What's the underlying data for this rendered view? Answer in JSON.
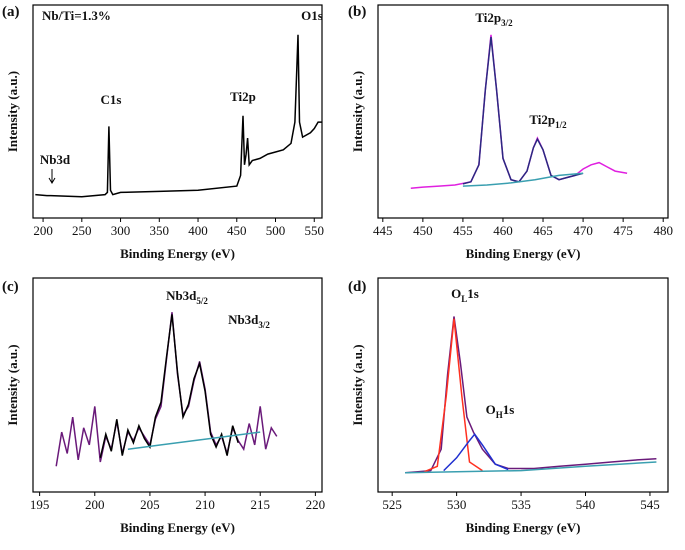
{
  "chart_data": [
    {
      "type": "line",
      "label": "(a)",
      "xlabel": "Binding Energy (eV)",
      "ylabel": "Intensity (a.u.)",
      "xlim": [
        187,
        560
      ],
      "xticks": [
        200,
        250,
        300,
        350,
        400,
        450,
        500,
        550
      ],
      "ylim": [
        0,
        100
      ],
      "series": [
        {
          "color": "#000000",
          "x": [
            190,
            205,
            210,
            250,
            280,
            283,
            285,
            287,
            290,
            300,
            350,
            400,
            450,
            455,
            458,
            460,
            462,
            464,
            466,
            470,
            480,
            490,
            500,
            510,
            520,
            525,
            529,
            531,
            535,
            545,
            550,
            555,
            560
          ],
          "values": [
            11,
            10.5,
            10.5,
            10,
            11,
            12,
            43,
            13,
            11,
            12,
            12.5,
            13,
            15,
            20,
            48,
            25,
            30,
            37.5,
            25,
            27,
            28,
            30,
            31,
            32,
            35,
            45,
            86,
            45,
            38,
            40,
            42,
            45,
            45
          ]
        }
      ],
      "annotations": [
        {
          "text": "Nb/Ti=1.3%"
        },
        {
          "text": "O1s"
        },
        {
          "text": "C1s"
        },
        {
          "text": "Ti2p"
        },
        {
          "text": "Nb3d"
        }
      ]
    },
    {
      "type": "line",
      "label": "(b)",
      "xlabel": "Binding Energy (eV)",
      "ylabel": "Intensity (a.u.)",
      "xlim": [
        444.4,
        480.6
      ],
      "xticks": [
        445,
        450,
        455,
        460,
        465,
        470,
        475,
        480
      ],
      "ylim": [
        0,
        100
      ],
      "series": [
        {
          "color": "#e020e0",
          "x": [
            448.5,
            450,
            452,
            454,
            456,
            457,
            457.8,
            458.5,
            459.2,
            460,
            461,
            462,
            463,
            463.8,
            464.3,
            465,
            466,
            467,
            468,
            469,
            470,
            471,
            472,
            473,
            474,
            475.5
          ],
          "values": [
            14,
            14.5,
            15,
            15.5,
            17,
            25,
            60,
            86,
            60,
            28,
            18,
            17,
            22,
            33,
            37.5,
            32,
            20,
            18,
            19,
            20,
            23,
            25,
            26,
            24,
            22,
            21
          ]
        },
        {
          "color": "#2a2a80",
          "x": [
            455,
            456,
            457,
            457.8,
            458.5,
            459.2,
            460,
            461,
            462,
            463,
            463.8,
            464.3,
            465,
            466,
            467,
            468,
            469,
            470
          ],
          "values": [
            16,
            17,
            25,
            60,
            85,
            60,
            28,
            18,
            17,
            22,
            33,
            37,
            32,
            20,
            18,
            19,
            20,
            21
          ]
        },
        {
          "color": "#3a9fb0",
          "x": [
            455,
            458,
            461,
            464,
            467,
            470
          ],
          "values": [
            15,
            15.5,
            16.5,
            18,
            20,
            21
          ]
        }
      ],
      "annotations": [
        {
          "text": "Ti2p",
          "sub": "3/2"
        },
        {
          "text": "Ti2p",
          "sub": "1/2"
        }
      ]
    },
    {
      "type": "line",
      "label": "(c)",
      "xlabel": "Binding Energy (eV)",
      "ylabel": "Intensity (a.u.)",
      "xlim": [
        194.4,
        220.6
      ],
      "xticks": [
        195,
        200,
        205,
        210,
        215,
        220
      ],
      "ylim": [
        0,
        100
      ],
      "series": [
        {
          "color": "#6a1a7a",
          "x": [
            196.5,
            197,
            197.5,
            198,
            198.5,
            199,
            199.5,
            200,
            200.5,
            201,
            201.5,
            202,
            202.5,
            203,
            203.5,
            204,
            204.5,
            205,
            205.5,
            206,
            206.5,
            207,
            207.5,
            208,
            208.5,
            209,
            209.5,
            210,
            210.5,
            211,
            211.5,
            212,
            212.5,
            213,
            213.5,
            214,
            214.5,
            215,
            215.5,
            216,
            216.5
          ],
          "values": [
            12,
            28,
            18,
            35,
            15,
            30,
            22,
            40,
            14,
            26,
            20,
            33,
            18,
            28,
            24,
            30,
            26,
            22,
            34,
            40,
            62,
            84,
            55,
            36,
            40,
            52,
            61,
            48,
            28,
            22,
            26,
            18,
            30,
            24,
            20,
            32,
            22,
            40,
            20,
            30,
            26
          ]
        },
        {
          "color": "#000000",
          "x": [
            200.5,
            201,
            201.5,
            202,
            202.5,
            203,
            203.5,
            204,
            204.5,
            205,
            205.5,
            206,
            206.5,
            207,
            207.5,
            208,
            208.5,
            209,
            209.5,
            210,
            210.5,
            211,
            211.5,
            212,
            212.5,
            213
          ],
          "values": [
            16,
            27,
            19,
            34,
            17,
            29,
            23,
            31,
            25,
            21,
            35,
            42,
            63,
            83,
            56,
            35,
            41,
            53,
            60,
            47,
            27,
            21,
            27,
            17,
            31,
            23
          ]
        },
        {
          "color": "#3a9fb0",
          "x": [
            203,
            206,
            209,
            212,
            215
          ],
          "values": [
            20,
            22,
            24,
            26,
            28
          ]
        }
      ],
      "annotations": [
        {
          "text": "Nb3d",
          "sub": "5/2"
        },
        {
          "text": "Nb3d",
          "sub": "3/2"
        }
      ]
    },
    {
      "type": "line",
      "label": "(d)",
      "xlabel": "Binding Energy (eV)",
      "ylabel": "Intensity (a.u.)",
      "xlim": [
        523.9,
        546.4
      ],
      "xticks": [
        525,
        530,
        535,
        540,
        545
      ],
      "ylim": [
        0,
        100
      ],
      "series": [
        {
          "color": "#6a1a7a",
          "x": [
            526,
            527,
            528,
            528.8,
            529.3,
            529.8,
            530.3,
            530.8,
            531.3,
            532,
            533,
            534,
            536,
            538,
            540,
            542,
            544,
            545.5
          ],
          "values": [
            9,
            9.5,
            10,
            20,
            55,
            82,
            60,
            35,
            28,
            20,
            13,
            11,
            11,
            12,
            13,
            14,
            15,
            15.5
          ]
        },
        {
          "color": "#ff3020",
          "x": [
            527.5,
            528.5,
            529.2,
            529.8,
            530.4,
            531,
            532
          ],
          "values": [
            9.5,
            12,
            45,
            81,
            45,
            14,
            10
          ]
        },
        {
          "color": "#2030d0",
          "x": [
            529,
            530,
            531,
            531.4,
            532,
            533,
            534
          ],
          "values": [
            10,
            16,
            24,
            27,
            22,
            13,
            10.5
          ]
        },
        {
          "color": "#3a9fb0",
          "x": [
            526,
            530,
            535,
            540,
            545.5
          ],
          "values": [
            9,
            9.5,
            10,
            12,
            14
          ]
        }
      ],
      "annotations": [
        {
          "text": "O",
          "sub": "L",
          "tail": "1s"
        },
        {
          "text": "O",
          "sub": "H",
          "tail": "1s"
        }
      ]
    }
  ]
}
